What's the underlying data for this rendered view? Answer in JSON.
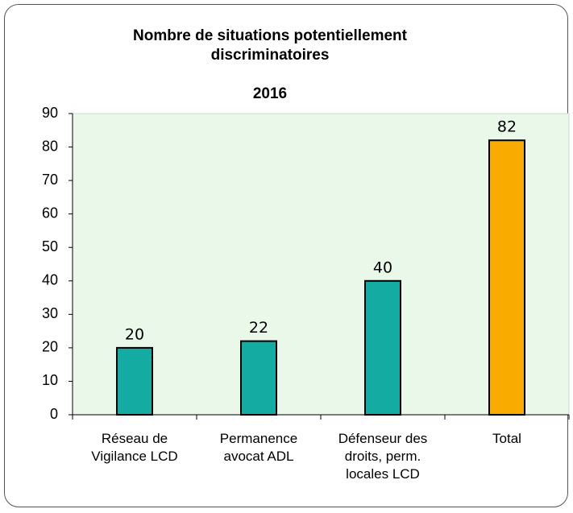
{
  "chart_data": {
    "type": "bar",
    "title": "Nombre de situations potentiellement discriminatoires",
    "subtitle": "2016",
    "categories": [
      "Réseau de Vigilance LCD",
      "Permanence avocat ADL",
      "Défenseur des droits, perm. locales LCD",
      "Total"
    ],
    "values": [
      20,
      22,
      40,
      82
    ],
    "colors": [
      "#14aba3",
      "#14aba3",
      "#14aba3",
      "#f9ab00"
    ],
    "ylim": [
      0,
      90
    ],
    "yticks": [
      0,
      10,
      20,
      30,
      40,
      50,
      60,
      70,
      80,
      90
    ],
    "grid": false
  }
}
